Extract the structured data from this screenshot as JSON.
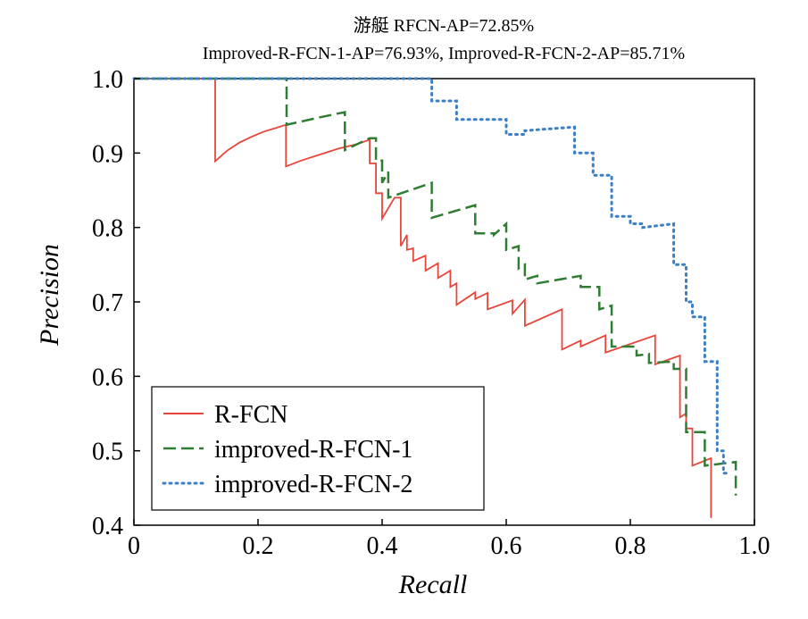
{
  "chart_data": {
    "type": "line",
    "title_line1": "游艇  RFCN-AP=72.85%",
    "title_line2": "Improved-R-FCN-1-AP=76.93%, Improved-R-FCN-2-AP=85.71%",
    "xlabel": "Recall",
    "ylabel": "Precision",
    "xlim": [
      0,
      1.0
    ],
    "ylim": [
      0.4,
      1.0
    ],
    "x_ticks": [
      "0",
      "0.2",
      "0.4",
      "0.6",
      "0.8",
      "1.0"
    ],
    "y_ticks": [
      "0.4",
      "0.5",
      "0.6",
      "0.7",
      "0.8",
      "0.9",
      "1.0"
    ],
    "x_tick_values": [
      0,
      0.2,
      0.4,
      0.6,
      0.8,
      1.0
    ],
    "y_tick_values": [
      0.4,
      0.5,
      0.6,
      0.7,
      0.8,
      0.9,
      1.0
    ],
    "legend_position": "lower-left",
    "series": [
      {
        "name": "R-FCN",
        "color": "#e8463a",
        "style": "solid",
        "points": [
          [
            0,
            1.0
          ],
          [
            0.131,
            1.0
          ],
          [
            0.131,
            0.889
          ],
          [
            0.15,
            0.903
          ],
          [
            0.17,
            0.914
          ],
          [
            0.19,
            0.922
          ],
          [
            0.21,
            0.929
          ],
          [
            0.23,
            0.934
          ],
          [
            0.245,
            0.938
          ],
          [
            0.245,
            0.882
          ],
          [
            0.27,
            0.89
          ],
          [
            0.3,
            0.898
          ],
          [
            0.33,
            0.906
          ],
          [
            0.36,
            0.912
          ],
          [
            0.38,
            0.918
          ],
          [
            0.38,
            0.886
          ],
          [
            0.39,
            0.886
          ],
          [
            0.39,
            0.846
          ],
          [
            0.4,
            0.846
          ],
          [
            0.4,
            0.812
          ],
          [
            0.42,
            0.84
          ],
          [
            0.43,
            0.84
          ],
          [
            0.43,
            0.775
          ],
          [
            0.44,
            0.79
          ],
          [
            0.44,
            0.77
          ],
          [
            0.45,
            0.772
          ],
          [
            0.45,
            0.755
          ],
          [
            0.47,
            0.762
          ],
          [
            0.47,
            0.742
          ],
          [
            0.49,
            0.752
          ],
          [
            0.49,
            0.732
          ],
          [
            0.51,
            0.742
          ],
          [
            0.51,
            0.72
          ],
          [
            0.52,
            0.725
          ],
          [
            0.52,
            0.696
          ],
          [
            0.55,
            0.713
          ],
          [
            0.55,
            0.704
          ],
          [
            0.57,
            0.712
          ],
          [
            0.57,
            0.69
          ],
          [
            0.61,
            0.702
          ],
          [
            0.61,
            0.684
          ],
          [
            0.63,
            0.703
          ],
          [
            0.63,
            0.668
          ],
          [
            0.69,
            0.69
          ],
          [
            0.69,
            0.636
          ],
          [
            0.72,
            0.648
          ],
          [
            0.72,
            0.64
          ],
          [
            0.76,
            0.655
          ],
          [
            0.76,
            0.632
          ],
          [
            0.84,
            0.655
          ],
          [
            0.84,
            0.616
          ],
          [
            0.88,
            0.628
          ],
          [
            0.88,
            0.545
          ],
          [
            0.89,
            0.55
          ],
          [
            0.89,
            0.53
          ],
          [
            0.9,
            0.53
          ],
          [
            0.9,
            0.48
          ],
          [
            0.93,
            0.49
          ],
          [
            0.93,
            0.41
          ]
        ]
      },
      {
        "name": "improved-R-FCN-1",
        "color": "#2e7d32",
        "style": "dashed",
        "points": [
          [
            0,
            1.0
          ],
          [
            0.246,
            1.0
          ],
          [
            0.246,
            0.938
          ],
          [
            0.3,
            0.948
          ],
          [
            0.34,
            0.955
          ],
          [
            0.34,
            0.904
          ],
          [
            0.38,
            0.92
          ],
          [
            0.39,
            0.92
          ],
          [
            0.39,
            0.89
          ],
          [
            0.4,
            0.89
          ],
          [
            0.4,
            0.86
          ],
          [
            0.41,
            0.875
          ],
          [
            0.41,
            0.84
          ],
          [
            0.48,
            0.86
          ],
          [
            0.48,
            0.813
          ],
          [
            0.55,
            0.83
          ],
          [
            0.55,
            0.792
          ],
          [
            0.58,
            0.792
          ],
          [
            0.58,
            0.79
          ],
          [
            0.6,
            0.805
          ],
          [
            0.6,
            0.77
          ],
          [
            0.62,
            0.775
          ],
          [
            0.62,
            0.745
          ],
          [
            0.63,
            0.75
          ],
          [
            0.63,
            0.73
          ],
          [
            0.65,
            0.735
          ],
          [
            0.65,
            0.725
          ],
          [
            0.72,
            0.735
          ],
          [
            0.72,
            0.72
          ],
          [
            0.75,
            0.72
          ],
          [
            0.75,
            0.69
          ],
          [
            0.77,
            0.695
          ],
          [
            0.77,
            0.64
          ],
          [
            0.81,
            0.64
          ],
          [
            0.81,
            0.628
          ],
          [
            0.83,
            0.63
          ],
          [
            0.83,
            0.618
          ],
          [
            0.87,
            0.62
          ],
          [
            0.87,
            0.61
          ],
          [
            0.89,
            0.61
          ],
          [
            0.89,
            0.525
          ],
          [
            0.92,
            0.525
          ],
          [
            0.92,
            0.48
          ],
          [
            0.97,
            0.485
          ],
          [
            0.97,
            0.44
          ]
        ]
      },
      {
        "name": "improved-R-FCN-2",
        "color": "#3b7fc4",
        "style": "dotted",
        "points": [
          [
            0,
            1.0
          ],
          [
            0.48,
            1.0
          ],
          [
            0.48,
            0.97
          ],
          [
            0.52,
            0.97
          ],
          [
            0.52,
            0.945
          ],
          [
            0.6,
            0.945
          ],
          [
            0.6,
            0.925
          ],
          [
            0.63,
            0.925
          ],
          [
            0.63,
            0.93
          ],
          [
            0.71,
            0.935
          ],
          [
            0.71,
            0.9
          ],
          [
            0.74,
            0.9
          ],
          [
            0.74,
            0.87
          ],
          [
            0.77,
            0.87
          ],
          [
            0.77,
            0.815
          ],
          [
            0.8,
            0.815
          ],
          [
            0.8,
            0.805
          ],
          [
            0.82,
            0.805
          ],
          [
            0.82,
            0.8
          ],
          [
            0.87,
            0.805
          ],
          [
            0.87,
            0.75
          ],
          [
            0.89,
            0.75
          ],
          [
            0.89,
            0.7
          ],
          [
            0.9,
            0.7
          ],
          [
            0.9,
            0.68
          ],
          [
            0.92,
            0.68
          ],
          [
            0.92,
            0.62
          ],
          [
            0.94,
            0.62
          ],
          [
            0.94,
            0.5
          ],
          [
            0.95,
            0.5
          ],
          [
            0.95,
            0.47
          ],
          [
            0.96,
            0.47
          ]
        ]
      }
    ]
  }
}
